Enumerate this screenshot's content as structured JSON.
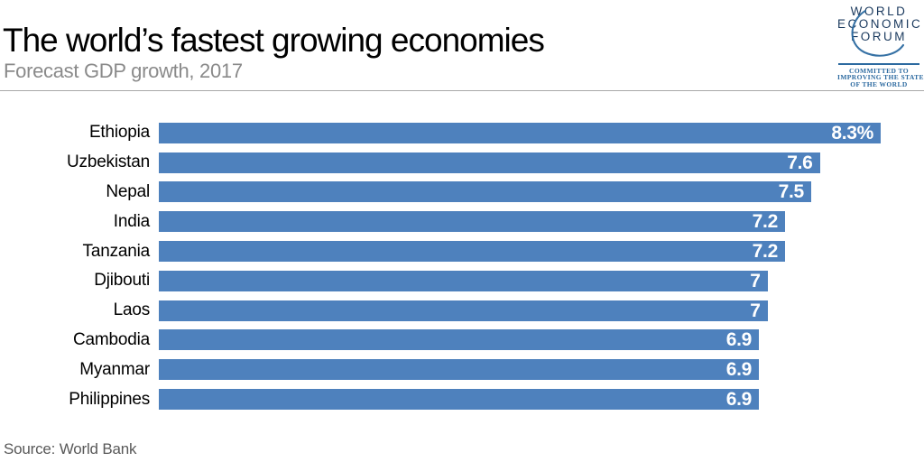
{
  "header": {
    "title": "The world’s fastest growing economies",
    "subtitle": "Forecast GDP growth, 2017"
  },
  "logo": {
    "name": "World Economic Forum",
    "line1": "WORLD",
    "line2": "ECONOMIC",
    "line3": "FORUM",
    "tagline_line1": "COMMITTED TO",
    "tagline_line2": "IMPROVING THE STATE",
    "tagline_line3": "OF THE WORLD",
    "text_color": "#1b3a5e",
    "accent_color": "#2c6aa0"
  },
  "source": "Source: World Bank",
  "chart_data": {
    "type": "bar",
    "orientation": "horizontal",
    "title": "The world’s fastest growing economies",
    "subtitle": "Forecast GDP growth, 2017",
    "categories": [
      "Ethiopia",
      "Uzbekistan",
      "Nepal",
      "India",
      "Tanzania",
      "Djibouti",
      "Laos",
      "Cambodia",
      "Myanmar",
      "Philippines"
    ],
    "values": [
      8.3,
      7.6,
      7.5,
      7.2,
      7.2,
      7.0,
      7.0,
      6.9,
      6.9,
      6.9
    ],
    "value_labels": [
      "8.3%",
      "7.6",
      "7.5",
      "7.2",
      "7.2",
      "7",
      "7",
      "6.9",
      "6.9",
      "6.9"
    ],
    "xlabel": "",
    "ylabel": "",
    "xlim": [
      0,
      8.3
    ],
    "grid": false,
    "legend": false,
    "bar_color": "#4e81bd",
    "value_label_color": "#ffffff",
    "unit": "% GDP growth"
  }
}
